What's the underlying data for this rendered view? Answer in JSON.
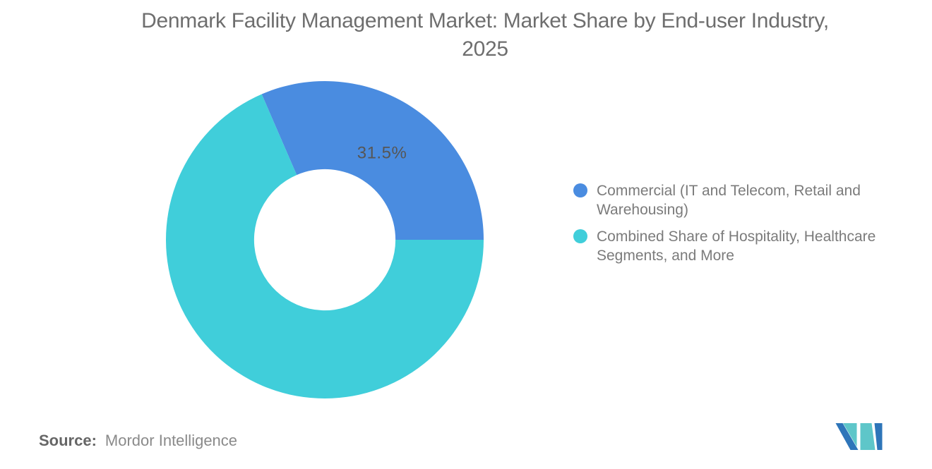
{
  "header": {
    "title_lines": [
      "Denmark Facility Management Market: Market Share by End-user Industry,",
      "2025"
    ]
  },
  "chart_data": {
    "type": "pie",
    "subtype": "donut",
    "title": "Denmark Facility Management Market: Market Share by End-user Industry, 2025",
    "unit": "%",
    "slices": [
      {
        "label": "Commercial (IT and Telecom, Retail and Warehousing)",
        "value": 31.5,
        "color": "#4A8CE0",
        "data_label": "31.5%"
      },
      {
        "label": "Combined Share of Hospitality, Healthcare Segments, and More",
        "value": 68.5,
        "color": "#40CEDA",
        "data_label": null
      }
    ],
    "start_angle_deg": -23.4,
    "inner_radius_ratio": 0.445,
    "legend_position": "right",
    "data_labels_shown": [
      "31.5%"
    ]
  },
  "footer": {
    "source_label": "Source:",
    "source_text": "Mordor Intelligence"
  },
  "logo": {
    "name": "mordor-intelligence-logo",
    "teal": "#5EC6C9",
    "blue": "#2E75B9"
  }
}
